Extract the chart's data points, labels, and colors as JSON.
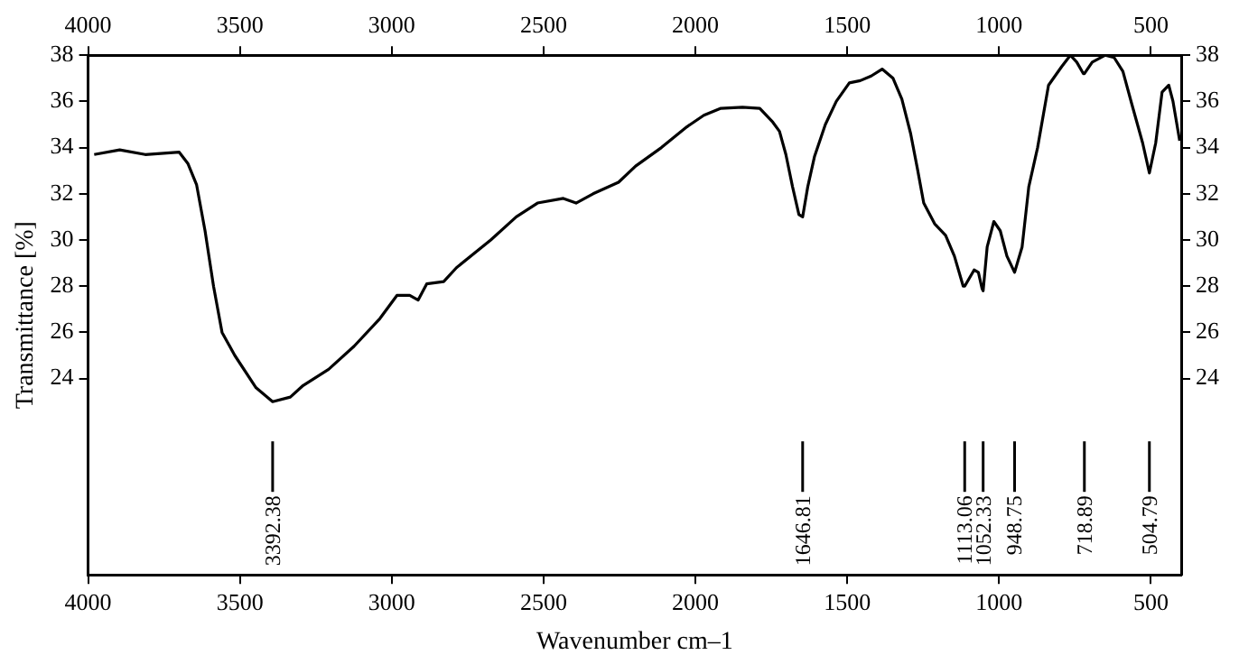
{
  "chart_data": {
    "type": "line",
    "xlabel": "Wavenumber cm–1",
    "ylabel": "Transmittance [%]",
    "xlim": [
      4000,
      400
    ],
    "xticks": [
      4000,
      3500,
      3000,
      2500,
      2000,
      1500,
      1000,
      500
    ],
    "x2lim": [
      4000,
      400
    ],
    "x2ticks": [
      4000,
      3500,
      3000,
      2500,
      2000,
      1500,
      1000,
      500
    ],
    "ylim": [
      15.5,
      38
    ],
    "yticks": [
      24,
      26,
      28,
      30,
      32,
      34,
      36,
      38
    ],
    "y2lim": [
      15.5,
      38
    ],
    "y2ticks": [
      24,
      26,
      28,
      30,
      32,
      34,
      36,
      38
    ],
    "grid": false,
    "legend": false,
    "marker": "none",
    "line_style": "solid",
    "x": [
      3980,
      3896,
      3812,
      3700,
      3671,
      3643,
      3615,
      3587,
      3559,
      3517,
      3447,
      3392.38,
      3334,
      3292,
      3208,
      3124,
      3039,
      2983,
      2941,
      2913,
      2885,
      2829,
      2787,
      2674,
      2590,
      2520,
      2435,
      2393,
      2337,
      2253,
      2197,
      2112,
      2028,
      1972,
      1916,
      1845,
      1788,
      1745,
      1723,
      1702,
      1680,
      1659,
      1646.81,
      1630,
      1608,
      1572,
      1536,
      1493,
      1457,
      1421,
      1385,
      1349,
      1320,
      1291,
      1269,
      1248,
      1212,
      1176,
      1147,
      1118,
      1113.06,
      1082,
      1068,
      1056,
      1052.33,
      1039,
      1017,
      996,
      974,
      948.75,
      924,
      902,
      873,
      837,
      794,
      765,
      744,
      722,
      718.89,
      693,
      650,
      621,
      592,
      563,
      527,
      504.79,
      484,
      463,
      441,
      427,
      405
    ],
    "series": [
      {
        "color": "#000000",
        "values": [
          33.7,
          33.9,
          33.7,
          33.8,
          33.3,
          32.4,
          30.4,
          28.0,
          26.0,
          25.0,
          23.6,
          23.0,
          23.2,
          23.7,
          24.4,
          25.4,
          26.6,
          27.6,
          27.6,
          27.4,
          28.1,
          28.2,
          28.8,
          30.0,
          31.0,
          31.6,
          31.8,
          31.6,
          32.0,
          32.5,
          33.2,
          34.0,
          34.9,
          35.4,
          35.7,
          35.75,
          35.7,
          35.1,
          34.7,
          33.7,
          32.3,
          31.1,
          31.0,
          32.3,
          33.6,
          35.0,
          36.0,
          36.8,
          36.9,
          37.1,
          37.4,
          37.0,
          36.1,
          34.6,
          33.1,
          31.6,
          30.7,
          30.2,
          29.3,
          28.0,
          28.0,
          28.7,
          28.6,
          27.9,
          27.8,
          29.7,
          30.8,
          30.4,
          29.3,
          28.6,
          29.7,
          32.3,
          34.0,
          36.7,
          37.5,
          38.0,
          37.7,
          37.2,
          37.2,
          37.7,
          38.0,
          37.9,
          37.3,
          35.9,
          34.2,
          32.9,
          34.2,
          36.4,
          36.7,
          36.0,
          34.3
        ]
      }
    ],
    "ref_lines": [
      {
        "axis": "x",
        "value": 3392.38,
        "label": "3392.38"
      },
      {
        "axis": "x",
        "value": 1646.81,
        "label": "1646.81"
      },
      {
        "axis": "x",
        "value": 1113.06,
        "label": "1113.06"
      },
      {
        "axis": "x",
        "value": 1052.33,
        "label": "1052.33"
      },
      {
        "axis": "x",
        "value": 948.75,
        "label": "948.75"
      },
      {
        "axis": "x",
        "value": 718.89,
        "label": "718.89"
      },
      {
        "axis": "x",
        "value": 504.79,
        "label": "504.79"
      }
    ]
  }
}
